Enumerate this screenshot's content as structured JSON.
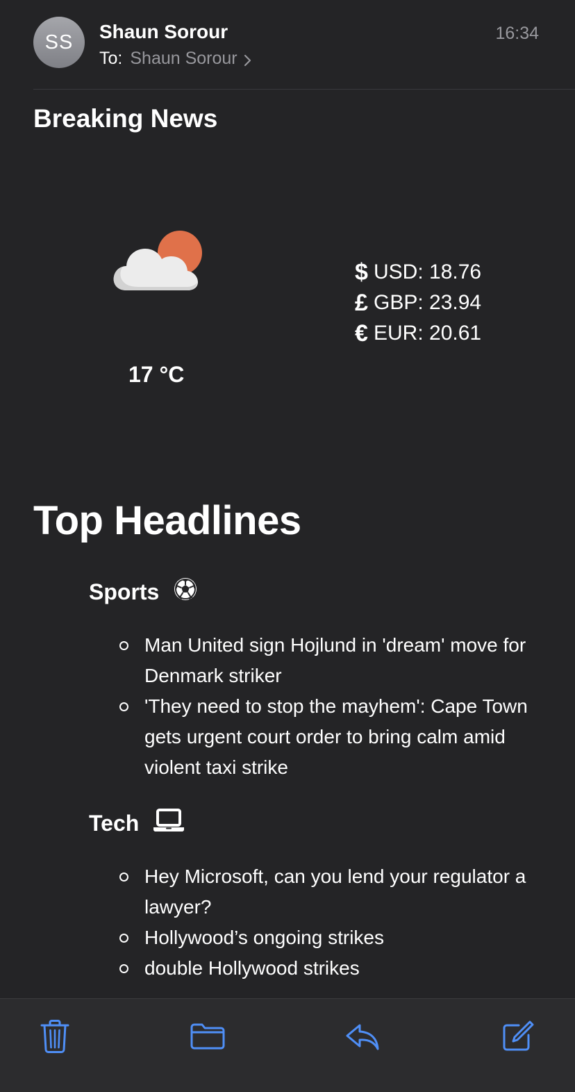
{
  "header": {
    "avatar_initials": "SS",
    "sender_name": "Shaun Sorour",
    "to_label": "To:",
    "recipient_name": "Shaun Sorour",
    "time": "16:34"
  },
  "email": {
    "heading": "Breaking News",
    "weather": {
      "icon": "partly-cloudy-icon",
      "temperature": "17 °C"
    },
    "exchange_rates": [
      {
        "symbol": "$",
        "label": "USD: 18.76"
      },
      {
        "symbol": "£",
        "label": "GBP: 23.94"
      },
      {
        "symbol": "€",
        "label": "EUR: 20.61"
      }
    ],
    "top_headlines_title": "Top Headlines",
    "sections": [
      {
        "title": "Sports",
        "icon": "soccer-ball-icon",
        "items": [
          "Man United sign Hojlund in 'dream' move for Denmark striker",
          "'They need to stop the mayhem': Cape Town gets urgent court order to bring calm amid violent taxi strike"
        ]
      },
      {
        "title": "Tech",
        "icon": "laptop-icon",
        "items": [
          "Hey Microsoft, can you lend your regulator a lawyer?",
          "Hollywood’s ongoing strikes",
          "double Hollywood strikes"
        ]
      }
    ]
  },
  "toolbar": {
    "buttons": [
      "trash-icon",
      "folder-icon",
      "reply-icon",
      "compose-icon"
    ]
  },
  "colors": {
    "background": "#242426",
    "toolbar_background": "#2c2c2e",
    "accent": "#4f8ff7",
    "secondary_text": "#98989d",
    "sun": "#e0714a"
  }
}
